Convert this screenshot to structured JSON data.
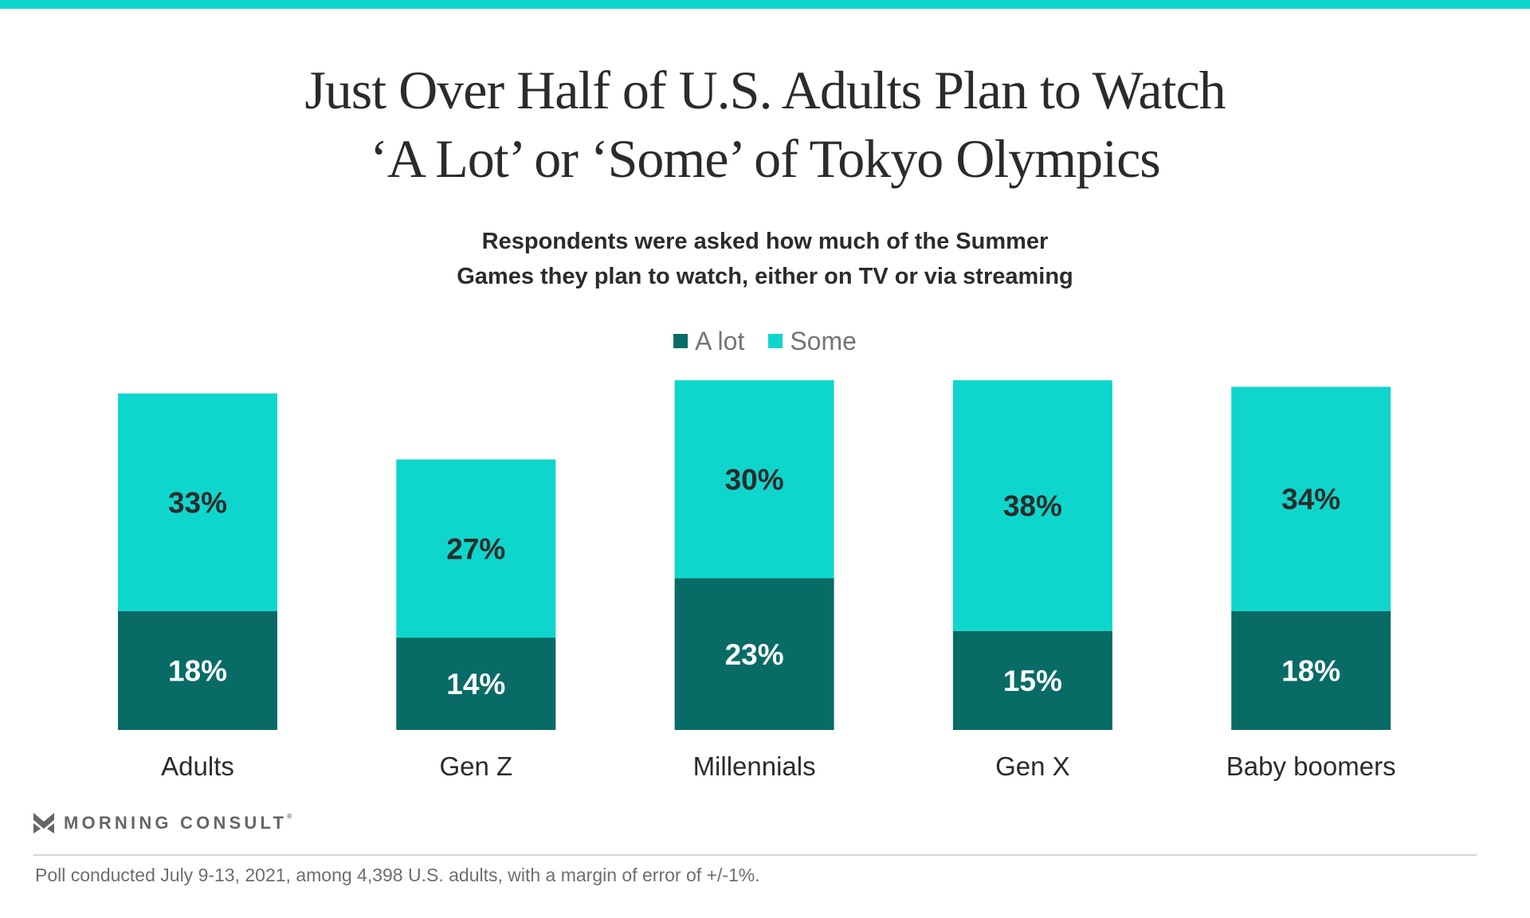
{
  "header": {
    "title_lines": [
      "Just Over Half of U.S. Adults Plan to Watch",
      "‘A Lot’ or ‘Some’ of Tokyo Olympics"
    ],
    "subtitle_lines": [
      "Respondents were asked how much of the Summer",
      "Games they plan to watch, either on TV or via streaming"
    ]
  },
  "colors": {
    "accent": "#0fd6cc",
    "a_lot": "#086b66",
    "some": "#0fd6cc",
    "label_dark": "#2b2b2b",
    "label_light": "#ffffff"
  },
  "legend": {
    "items": [
      {
        "label": "A lot",
        "color": "#086b66"
      },
      {
        "label": "Some",
        "color": "#0fd6cc"
      }
    ]
  },
  "chart_data": {
    "type": "bar",
    "stacked": true,
    "title": "Just Over Half of U.S. Adults Plan to Watch ‘A Lot’ or ‘Some’ of Tokyo Olympics",
    "subtitle": "Respondents were asked how much of the Summer Games they plan to watch, either on TV or via streaming",
    "categories": [
      "Adults",
      "Gen Z",
      "Millennials",
      "Gen X",
      "Baby boomers"
    ],
    "series": [
      {
        "name": "A lot",
        "values": [
          18,
          14,
          23,
          15,
          18
        ],
        "labels": [
          "18%",
          "14%",
          "23%",
          "15%",
          "18%"
        ]
      },
      {
        "name": "Some",
        "values": [
          33,
          27,
          30,
          38,
          34
        ],
        "labels": [
          "33%",
          "27%",
          "30%",
          "38%",
          "34%"
        ]
      }
    ],
    "xlabel": "",
    "ylabel": "",
    "ylim": [
      0,
      53
    ],
    "grid": false,
    "axis_visible": false,
    "legend_position": "top-center",
    "value_unit": "%"
  },
  "footer": {
    "brand": "MORNING CONSULT",
    "brand_mark": "®",
    "note": "Poll conducted July 9-13, 2021, among 4,398 U.S. adults, with a margin of error of +/-1%."
  }
}
